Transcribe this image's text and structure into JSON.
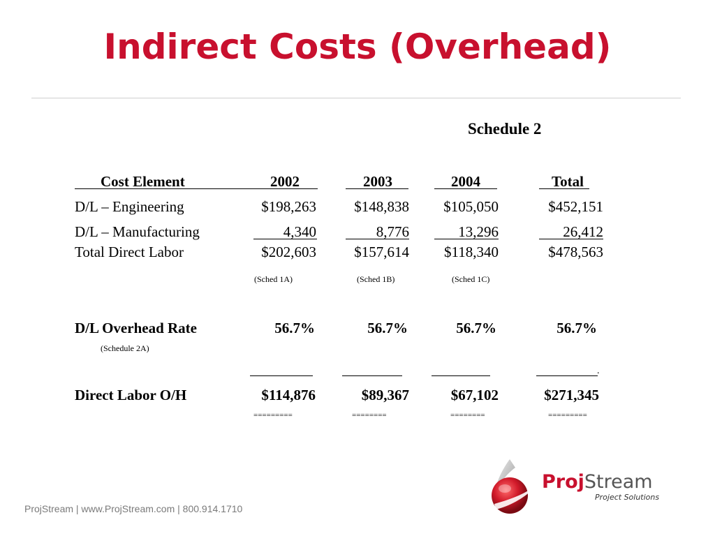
{
  "title": "Indirect Costs (Overhead)",
  "schedule_label": "Schedule 2",
  "table": {
    "headers": [
      "Cost Element",
      "2002",
      "2003",
      "2004",
      "Total"
    ],
    "rows": [
      {
        "label": "D/L – Engineering",
        "values": [
          "$198,263",
          "$148,838",
          "$105,050",
          "$452,151"
        ]
      },
      {
        "label": "D/L – Manufacturing",
        "values": [
          "4,340",
          "8,776",
          "13,296",
          "26,412"
        ]
      },
      {
        "label": "Total Direct Labor",
        "values": [
          "$202,603",
          "$157,614",
          "$118,340",
          "$478,563"
        ]
      }
    ],
    "schedule_refs": [
      "(Sched 1A)",
      "(Sched 1B)",
      "(Sched 1C)"
    ],
    "overhead_rate": {
      "label": "D/L Overhead Rate",
      "note": "(Schedule 2A)",
      "values": [
        "56.7%",
        "56.7%",
        "56.7%",
        "56.7%"
      ]
    },
    "overhead_total": {
      "label": "Direct Labor O/H",
      "values": [
        "$114,876",
        "$89,367",
        "$67,102",
        "$271,345"
      ]
    },
    "period": ".",
    "double_lines": [
      "=========",
      "========",
      "========",
      "========="
    ]
  },
  "footer": "ProjStream | www.ProjStream.com | 800.914.1710",
  "logo": {
    "brand_bold": "Proj",
    "brand_light": "Stream",
    "tagline": "Project Solutions",
    "brand_color": "#c8102e",
    "text_color": "#555555"
  }
}
